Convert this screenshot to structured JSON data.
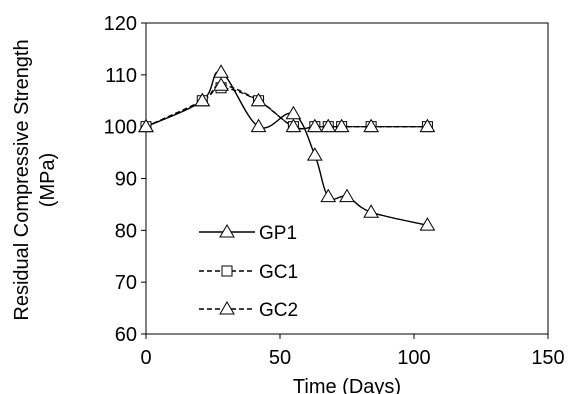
{
  "chart_data": {
    "type": "line",
    "title": "",
    "xlabel": "Time (Days)",
    "ylabel_lines": [
      "Residual Compressive Strength",
      "(MPa)"
    ],
    "xlim": [
      0,
      150
    ],
    "ylim": [
      60,
      120
    ],
    "x_ticks": [
      "0",
      "50",
      "100",
      "150"
    ],
    "y_ticks": [
      "60",
      "70",
      "80",
      "90",
      "100",
      "110",
      "120"
    ],
    "grid": false,
    "legend_position": "lower-left",
    "series": [
      {
        "name": "GP1",
        "marker": "triangle",
        "line_style": "solid",
        "color": "#000000",
        "points": [
          [
            0,
            100
          ],
          [
            21,
            105
          ],
          [
            28,
            110.5
          ],
          [
            42,
            100
          ],
          [
            55,
            102.5
          ],
          [
            63,
            94.5
          ],
          [
            68,
            86.5
          ],
          [
            75,
            86.5
          ],
          [
            84,
            83.5
          ],
          [
            105,
            81
          ]
        ]
      },
      {
        "name": "GC1",
        "marker": "square",
        "line_style": "dashed",
        "color": "#000000",
        "points": [
          [
            0,
            100
          ],
          [
            21,
            105
          ],
          [
            28,
            107.5
          ],
          [
            42,
            105
          ],
          [
            55,
            100
          ],
          [
            63,
            100
          ],
          [
            68,
            100
          ],
          [
            73,
            100
          ],
          [
            84,
            100
          ],
          [
            105,
            100
          ]
        ]
      },
      {
        "name": "GC2",
        "marker": "triangle",
        "line_style": "dashed",
        "color": "#000000",
        "points": [
          [
            0,
            100
          ],
          [
            21,
            105
          ],
          [
            28,
            108
          ],
          [
            42,
            105
          ],
          [
            55,
            100
          ],
          [
            63,
            100
          ],
          [
            68,
            100
          ],
          [
            73,
            100
          ],
          [
            84,
            100
          ],
          [
            105,
            100
          ]
        ]
      }
    ]
  }
}
